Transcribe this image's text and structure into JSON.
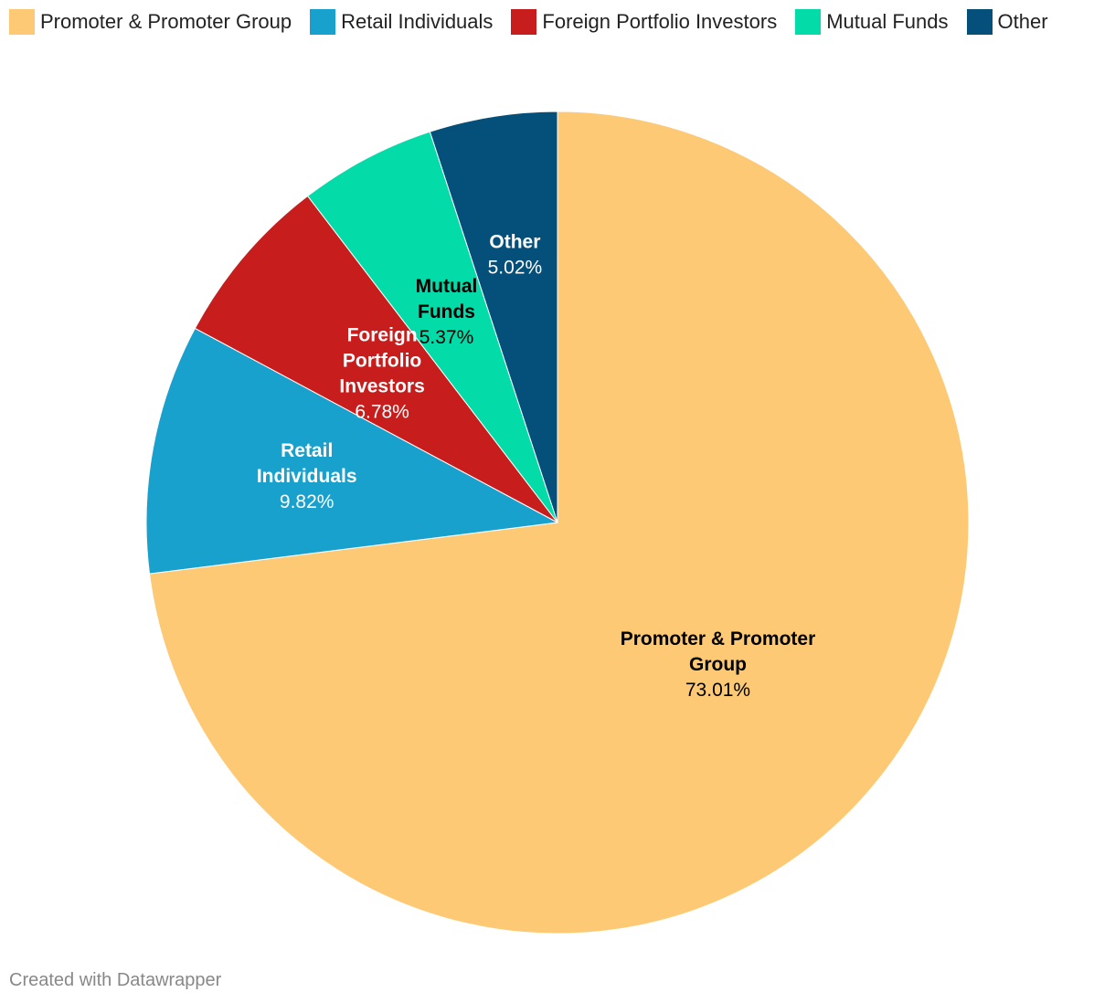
{
  "chart_data": {
    "type": "pie",
    "title": "",
    "legend_position": "top-left",
    "start": "12 o'clock",
    "direction": "clockwise",
    "slices": [
      {
        "name": "Promoter & Promoter Group",
        "value": 73.01,
        "value_label": "73.01%",
        "color": "#fdc975",
        "text_color": "#000000",
        "label_lines": [
          "Promoter & Promoter",
          "Group"
        ]
      },
      {
        "name": "Retail Individuals",
        "value": 9.82,
        "value_label": "9.82%",
        "color": "#18a1cd",
        "text_color": "#ffffff",
        "label_lines": [
          "Retail",
          "Individuals"
        ]
      },
      {
        "name": "Foreign Portfolio Investors",
        "value": 6.78,
        "value_label": "6.78%",
        "color": "#c71e1d",
        "text_color": "#ffffff",
        "label_lines": [
          "Foreign",
          "Portfolio",
          "Investors"
        ]
      },
      {
        "name": "Mutual Funds",
        "value": 5.37,
        "value_label": "5.37%",
        "color": "#03dba9",
        "text_color": "#000000",
        "label_lines": [
          "Mutual",
          "Funds"
        ]
      },
      {
        "name": "Other",
        "value": 5.02,
        "value_label": "5.02%",
        "color": "#04507a",
        "text_color": "#ffffff",
        "label_lines": [
          "Other"
        ]
      }
    ]
  },
  "footer": {
    "credit": "Created with Datawrapper"
  }
}
